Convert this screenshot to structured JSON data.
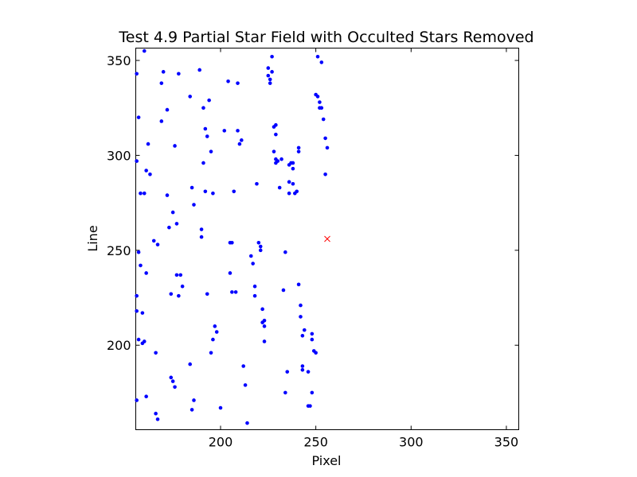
{
  "chart_data": {
    "type": "scatter",
    "title": "Test 4.9 Partial Star Field with Occulted Stars Removed",
    "xlabel": "Pixel",
    "ylabel": "Line",
    "xlim": [
      155.5,
      356.5
    ],
    "ylim": [
      155.5,
      356.5
    ],
    "xticks": [
      200,
      250,
      300,
      350
    ],
    "yticks": [
      200,
      250,
      300,
      350
    ],
    "grid": false,
    "colors": {
      "stars": "#0000ff",
      "center": "#ff0000"
    },
    "series": [
      {
        "marker": "dot",
        "color": "#0000ff",
        "points": [
          [
            156,
            343
          ],
          [
            156,
            297
          ],
          [
            157,
            320
          ],
          [
            158,
            280
          ],
          [
            160,
            280
          ],
          [
            157,
            249
          ],
          [
            158,
            242
          ],
          [
            161,
            238
          ],
          [
            156,
            226
          ],
          [
            156,
            218
          ],
          [
            159,
            217
          ],
          [
            157,
            203
          ],
          [
            159,
            201
          ],
          [
            160,
            202
          ],
          [
            156,
            171
          ],
          [
            161,
            173
          ],
          [
            160,
            355
          ],
          [
            161,
            292
          ],
          [
            163,
            290
          ],
          [
            162,
            306
          ],
          [
            165,
            255
          ],
          [
            167,
            253
          ],
          [
            166,
            196
          ],
          [
            166,
            164
          ],
          [
            167,
            161
          ],
          [
            169,
            318
          ],
          [
            169,
            338
          ],
          [
            170,
            344
          ],
          [
            172,
            324
          ],
          [
            172,
            279
          ],
          [
            173,
            262
          ],
          [
            175,
            270
          ],
          [
            177,
            264
          ],
          [
            174,
            227
          ],
          [
            177,
            237
          ],
          [
            178,
            226
          ],
          [
            179,
            237
          ],
          [
            180,
            231
          ],
          [
            176,
            305
          ],
          [
            178,
            343
          ],
          [
            174,
            183
          ],
          [
            175,
            181
          ],
          [
            176,
            178
          ],
          [
            184,
            331
          ],
          [
            184,
            190
          ],
          [
            185,
            283
          ],
          [
            186,
            274
          ],
          [
            185,
            166
          ],
          [
            186,
            171
          ],
          [
            189,
            345
          ],
          [
            190,
            261
          ],
          [
            190,
            257
          ],
          [
            191,
            296
          ],
          [
            191,
            325
          ],
          [
            192,
            314
          ],
          [
            193,
            310
          ],
          [
            194,
            329
          ],
          [
            195,
            302
          ],
          [
            192,
            281
          ],
          [
            196,
            280
          ],
          [
            193,
            227
          ],
          [
            195,
            196
          ],
          [
            196,
            203
          ],
          [
            197,
            210
          ],
          [
            198,
            207
          ],
          [
            200,
            167
          ],
          [
            202,
            313
          ],
          [
            204,
            339
          ],
          [
            205,
            254
          ],
          [
            206,
            254
          ],
          [
            205,
            238
          ],
          [
            206,
            228
          ],
          [
            207,
            281
          ],
          [
            208,
            228
          ],
          [
            209,
            338
          ],
          [
            209,
            313
          ],
          [
            210,
            306
          ],
          [
            211,
            308
          ],
          [
            212,
            189
          ],
          [
            213,
            179
          ],
          [
            214,
            159
          ],
          [
            216,
            247
          ],
          [
            217,
            243
          ],
          [
            218,
            231
          ],
          [
            218,
            226
          ],
          [
            219,
            285
          ],
          [
            220,
            254
          ],
          [
            221,
            252
          ],
          [
            221,
            250
          ],
          [
            222,
            219
          ],
          [
            222,
            212
          ],
          [
            223,
            213
          ],
          [
            223,
            210
          ],
          [
            223,
            202
          ],
          [
            225,
            346
          ],
          [
            225,
            342
          ],
          [
            226,
            338
          ],
          [
            226,
            340
          ],
          [
            227,
            344
          ],
          [
            227,
            352
          ],
          [
            228,
            315
          ],
          [
            228,
            302
          ],
          [
            229,
            296
          ],
          [
            229,
            298
          ],
          [
            229,
            311
          ],
          [
            229,
            316
          ],
          [
            230,
            297
          ],
          [
            231,
            283
          ],
          [
            232,
            298
          ],
          [
            233,
            229
          ],
          [
            234,
            249
          ],
          [
            234,
            175
          ],
          [
            235,
            186
          ],
          [
            236,
            280
          ],
          [
            236,
            286
          ],
          [
            236,
            295
          ],
          [
            237,
            296
          ],
          [
            238,
            293
          ],
          [
            238,
            296
          ],
          [
            238,
            285
          ],
          [
            239,
            280
          ],
          [
            240,
            281
          ],
          [
            241,
            302
          ],
          [
            241,
            304
          ],
          [
            241,
            232
          ],
          [
            242,
            221
          ],
          [
            242,
            215
          ],
          [
            243,
            205
          ],
          [
            243,
            189
          ],
          [
            243,
            187
          ],
          [
            244,
            208
          ],
          [
            246,
            186
          ],
          [
            246,
            168
          ],
          [
            247,
            168
          ],
          [
            248,
            175
          ],
          [
            248,
            203
          ],
          [
            248,
            206
          ],
          [
            249,
            197
          ],
          [
            250,
            196
          ],
          [
            250,
            332
          ],
          [
            251,
            331
          ],
          [
            252,
            328
          ],
          [
            252,
            325
          ],
          [
            253,
            325
          ],
          [
            254,
            319
          ],
          [
            255,
            309
          ],
          [
            255,
            290
          ],
          [
            256,
            304
          ],
          [
            251,
            352
          ],
          [
            253,
            349
          ]
        ]
      },
      {
        "marker": "x",
        "color": "#ff0000",
        "points": [
          [
            256,
            256
          ]
        ]
      }
    ]
  }
}
